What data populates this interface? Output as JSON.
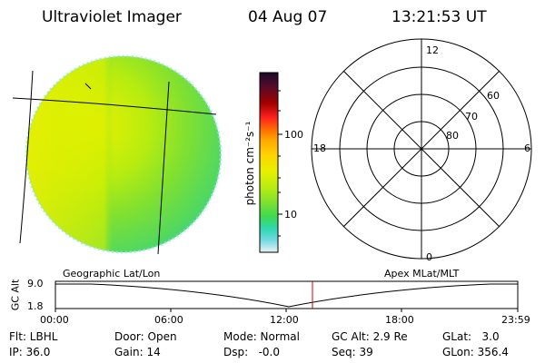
{
  "header": {
    "instrument": "Ultraviolet Imager",
    "date": "04 Aug 07",
    "time": "13:21:53 UT"
  },
  "colorbar": {
    "label": "photon cm⁻²s⁻¹",
    "ticks": [
      "100",
      "10"
    ],
    "colors": [
      "#1a0a2a",
      "#3a1030",
      "#5a0a2a",
      "#8a0000",
      "#c40000",
      "#ff2020",
      "#ff7000",
      "#ffaa00",
      "#ffd400",
      "#e8f000",
      "#b8ec10",
      "#80e030",
      "#40d850",
      "#30d8b0",
      "#40c8e0",
      "#a0e0e8",
      "#e0f0f4"
    ]
  },
  "polar_plot": {
    "mlt_labels": [
      "12",
      "18",
      "6",
      "0"
    ],
    "lat_labels": [
      "60",
      "70",
      "80"
    ]
  },
  "timeline": {
    "left_label": "Geographic Lat/Lon",
    "right_label": "Apex MLat/MLT",
    "axis_title": "GC Alt",
    "y_ticks": [
      "9.0",
      "1.8"
    ],
    "x_ticks": [
      "00:00",
      "06:00",
      "12:00",
      "18:00",
      "23:59"
    ],
    "marker_color": "#cc0000"
  },
  "info": {
    "flt": "Flt: LBHL",
    "ip": "IP: 36.0",
    "door": "Door: Open",
    "gain": "Gain: 14",
    "mode": "Mode: Normal",
    "dsp": "Dsp:   -0.0",
    "gc_alt": "GC Alt: 2.9 Re",
    "seq": "Seq: 39",
    "glat": "GLat:   3.0",
    "glon": "GLon: 356.4"
  }
}
